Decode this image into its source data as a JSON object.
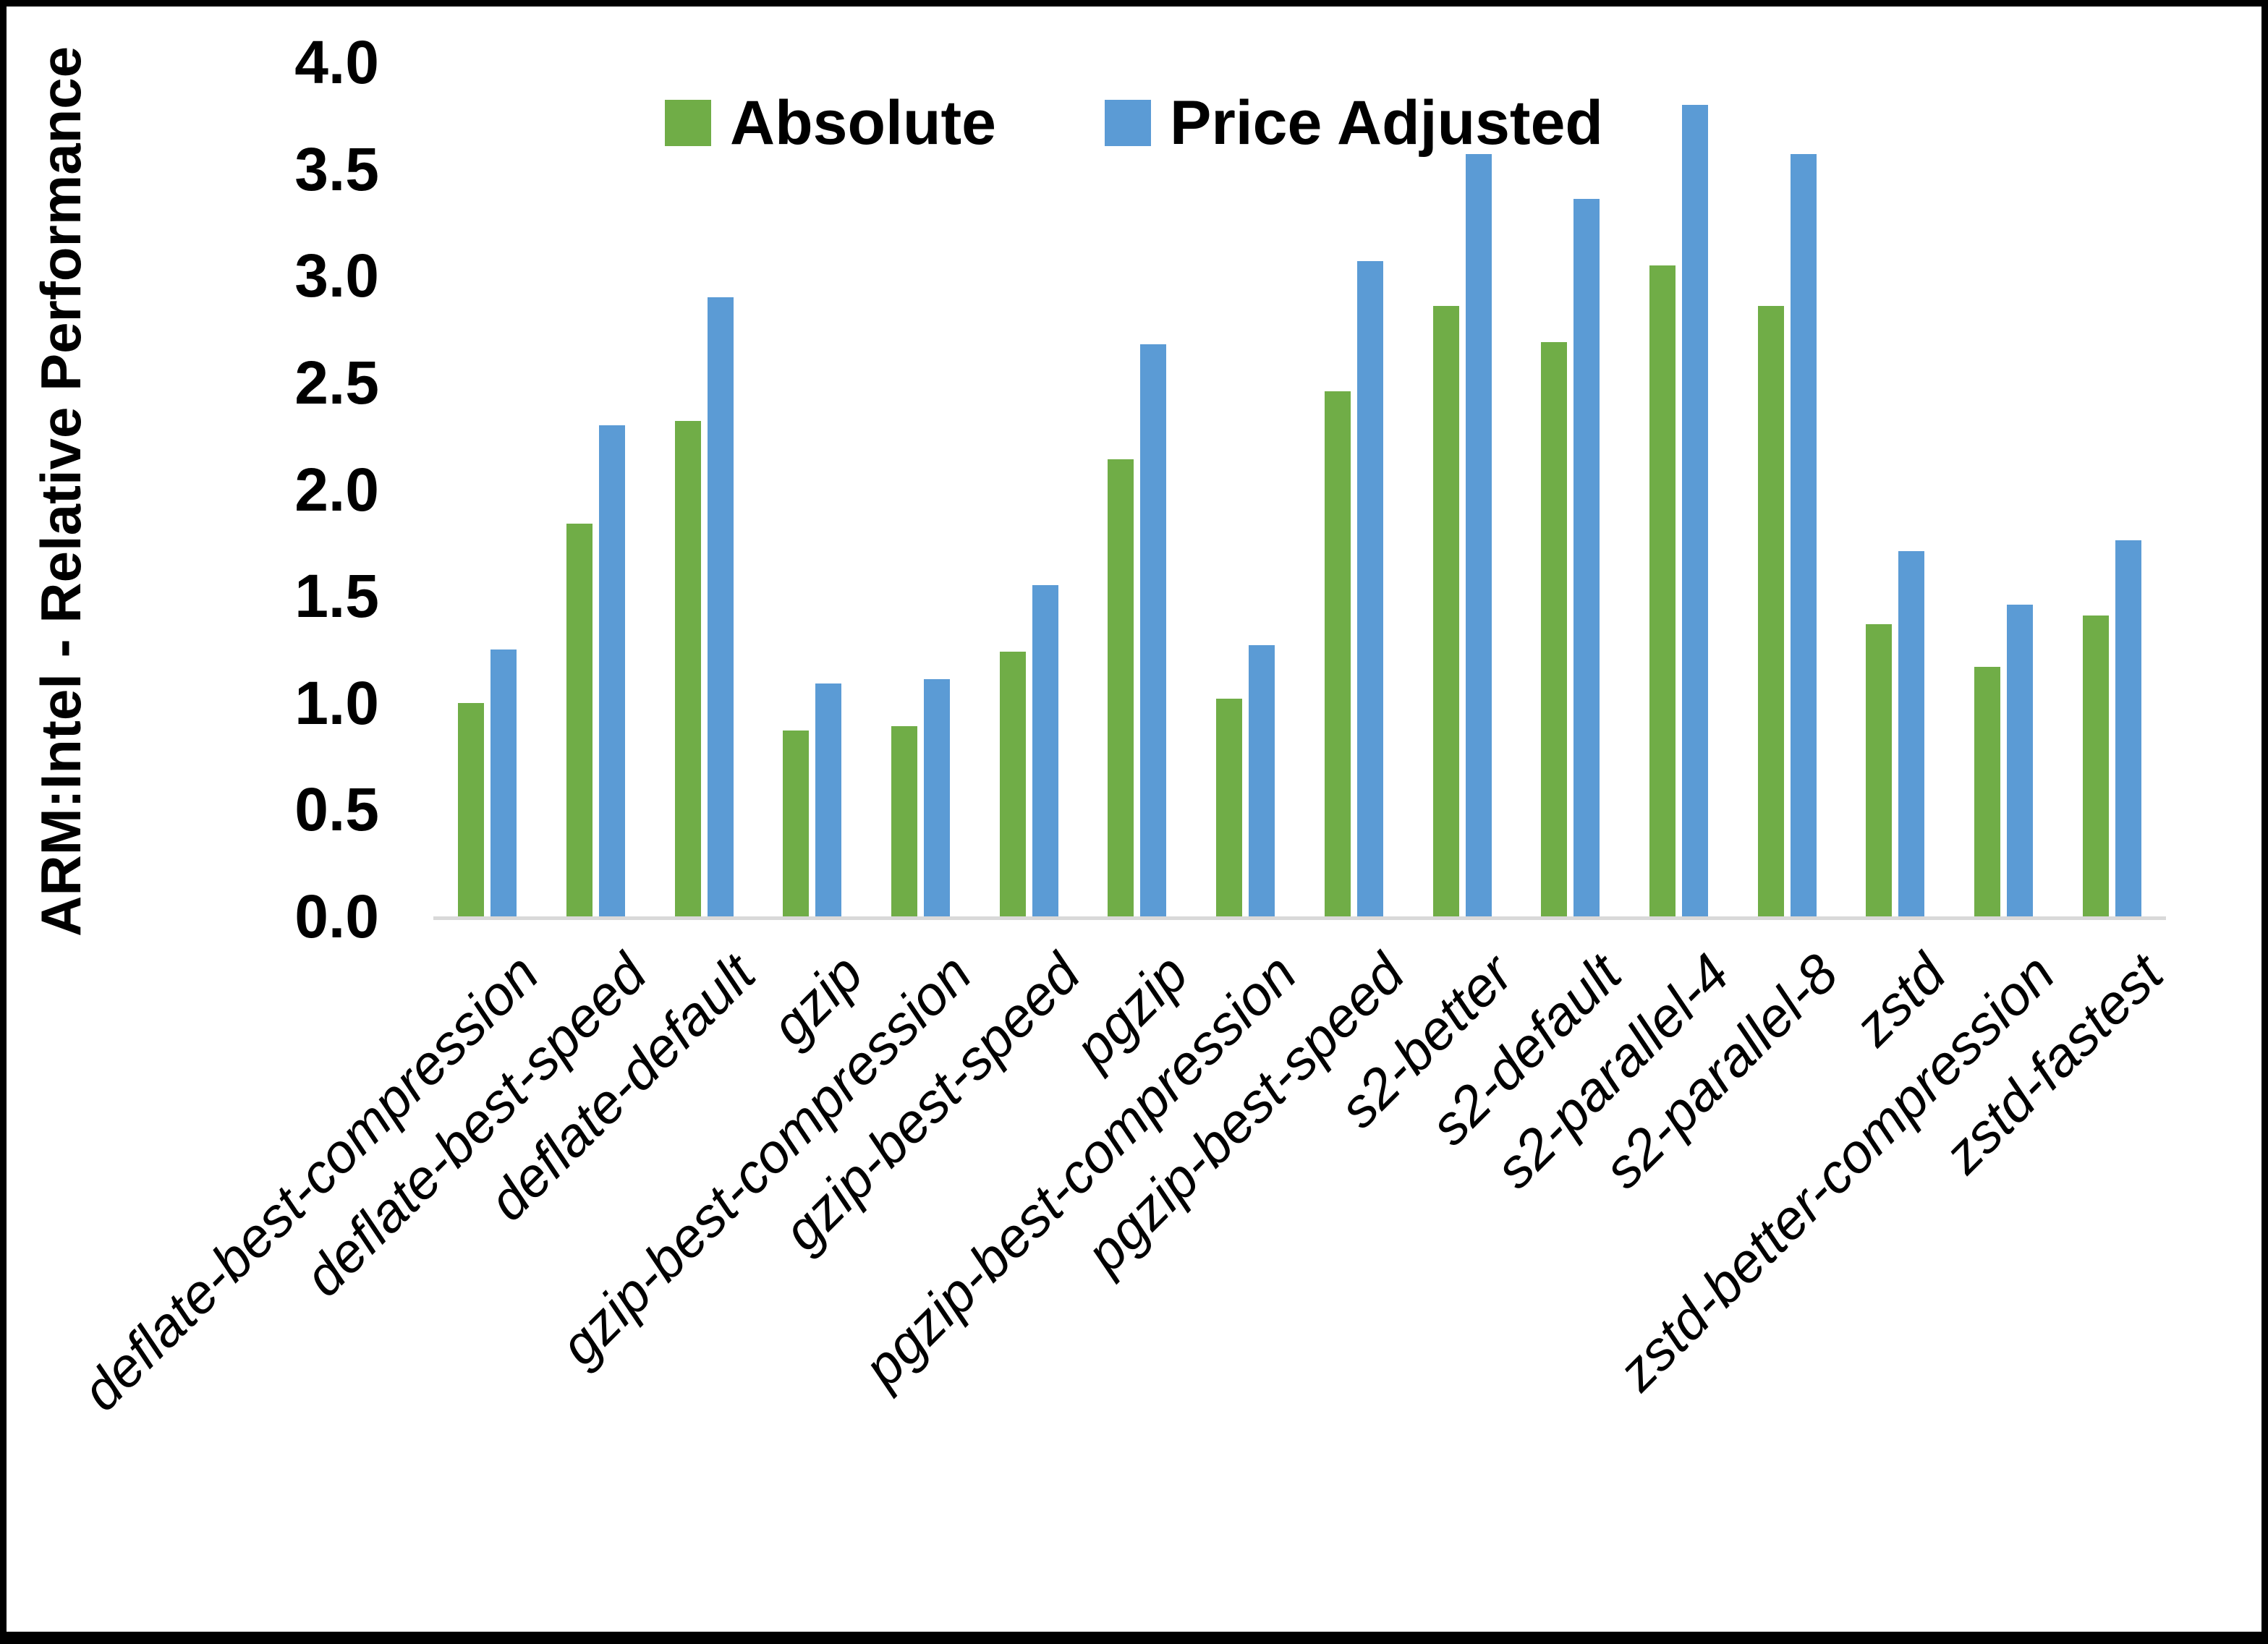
{
  "chart_data": {
    "type": "bar",
    "title": "",
    "xlabel": "",
    "ylabel": "ARM:Intel - Relative Performance",
    "ylim": [
      0,
      4.0
    ],
    "yticks": [
      0.0,
      0.5,
      1.0,
      1.5,
      2.0,
      2.5,
      3.0,
      3.5,
      4.0
    ],
    "ytick_format_decimals": 1,
    "grid": false,
    "legend_position": "top-center",
    "axis_line_color": "#D9D9D9",
    "text_color": "#000000",
    "background_color": "#FFFFFF",
    "frame_border_color": "#000000",
    "categories": [
      "deflate-best-compression",
      "deflate-best-speed",
      "deflate-default",
      "gzip",
      "gzip-best-compression",
      "gzip-best-speed",
      "pgzip",
      "pgzip-best-compression",
      "pgzip-best-speed",
      "s2-better",
      "s2-default",
      "s2-parallel-4",
      "s2-parallel-8",
      "zstd",
      "zstd-better-compression",
      "zstd-fastest"
    ],
    "series": [
      {
        "name": "Absolute",
        "color": "#70AD47",
        "values": [
          1.0,
          1.84,
          2.32,
          0.87,
          0.89,
          1.24,
          2.14,
          1.02,
          2.46,
          2.86,
          2.69,
          3.05,
          2.86,
          1.37,
          1.17,
          1.41
        ]
      },
      {
        "name": "Price Adjusted",
        "color": "#5B9BD5",
        "values": [
          1.25,
          2.3,
          2.9,
          1.09,
          1.11,
          1.55,
          2.68,
          1.27,
          3.07,
          3.57,
          3.36,
          3.8,
          3.57,
          1.71,
          1.46,
          1.76
        ]
      }
    ]
  }
}
